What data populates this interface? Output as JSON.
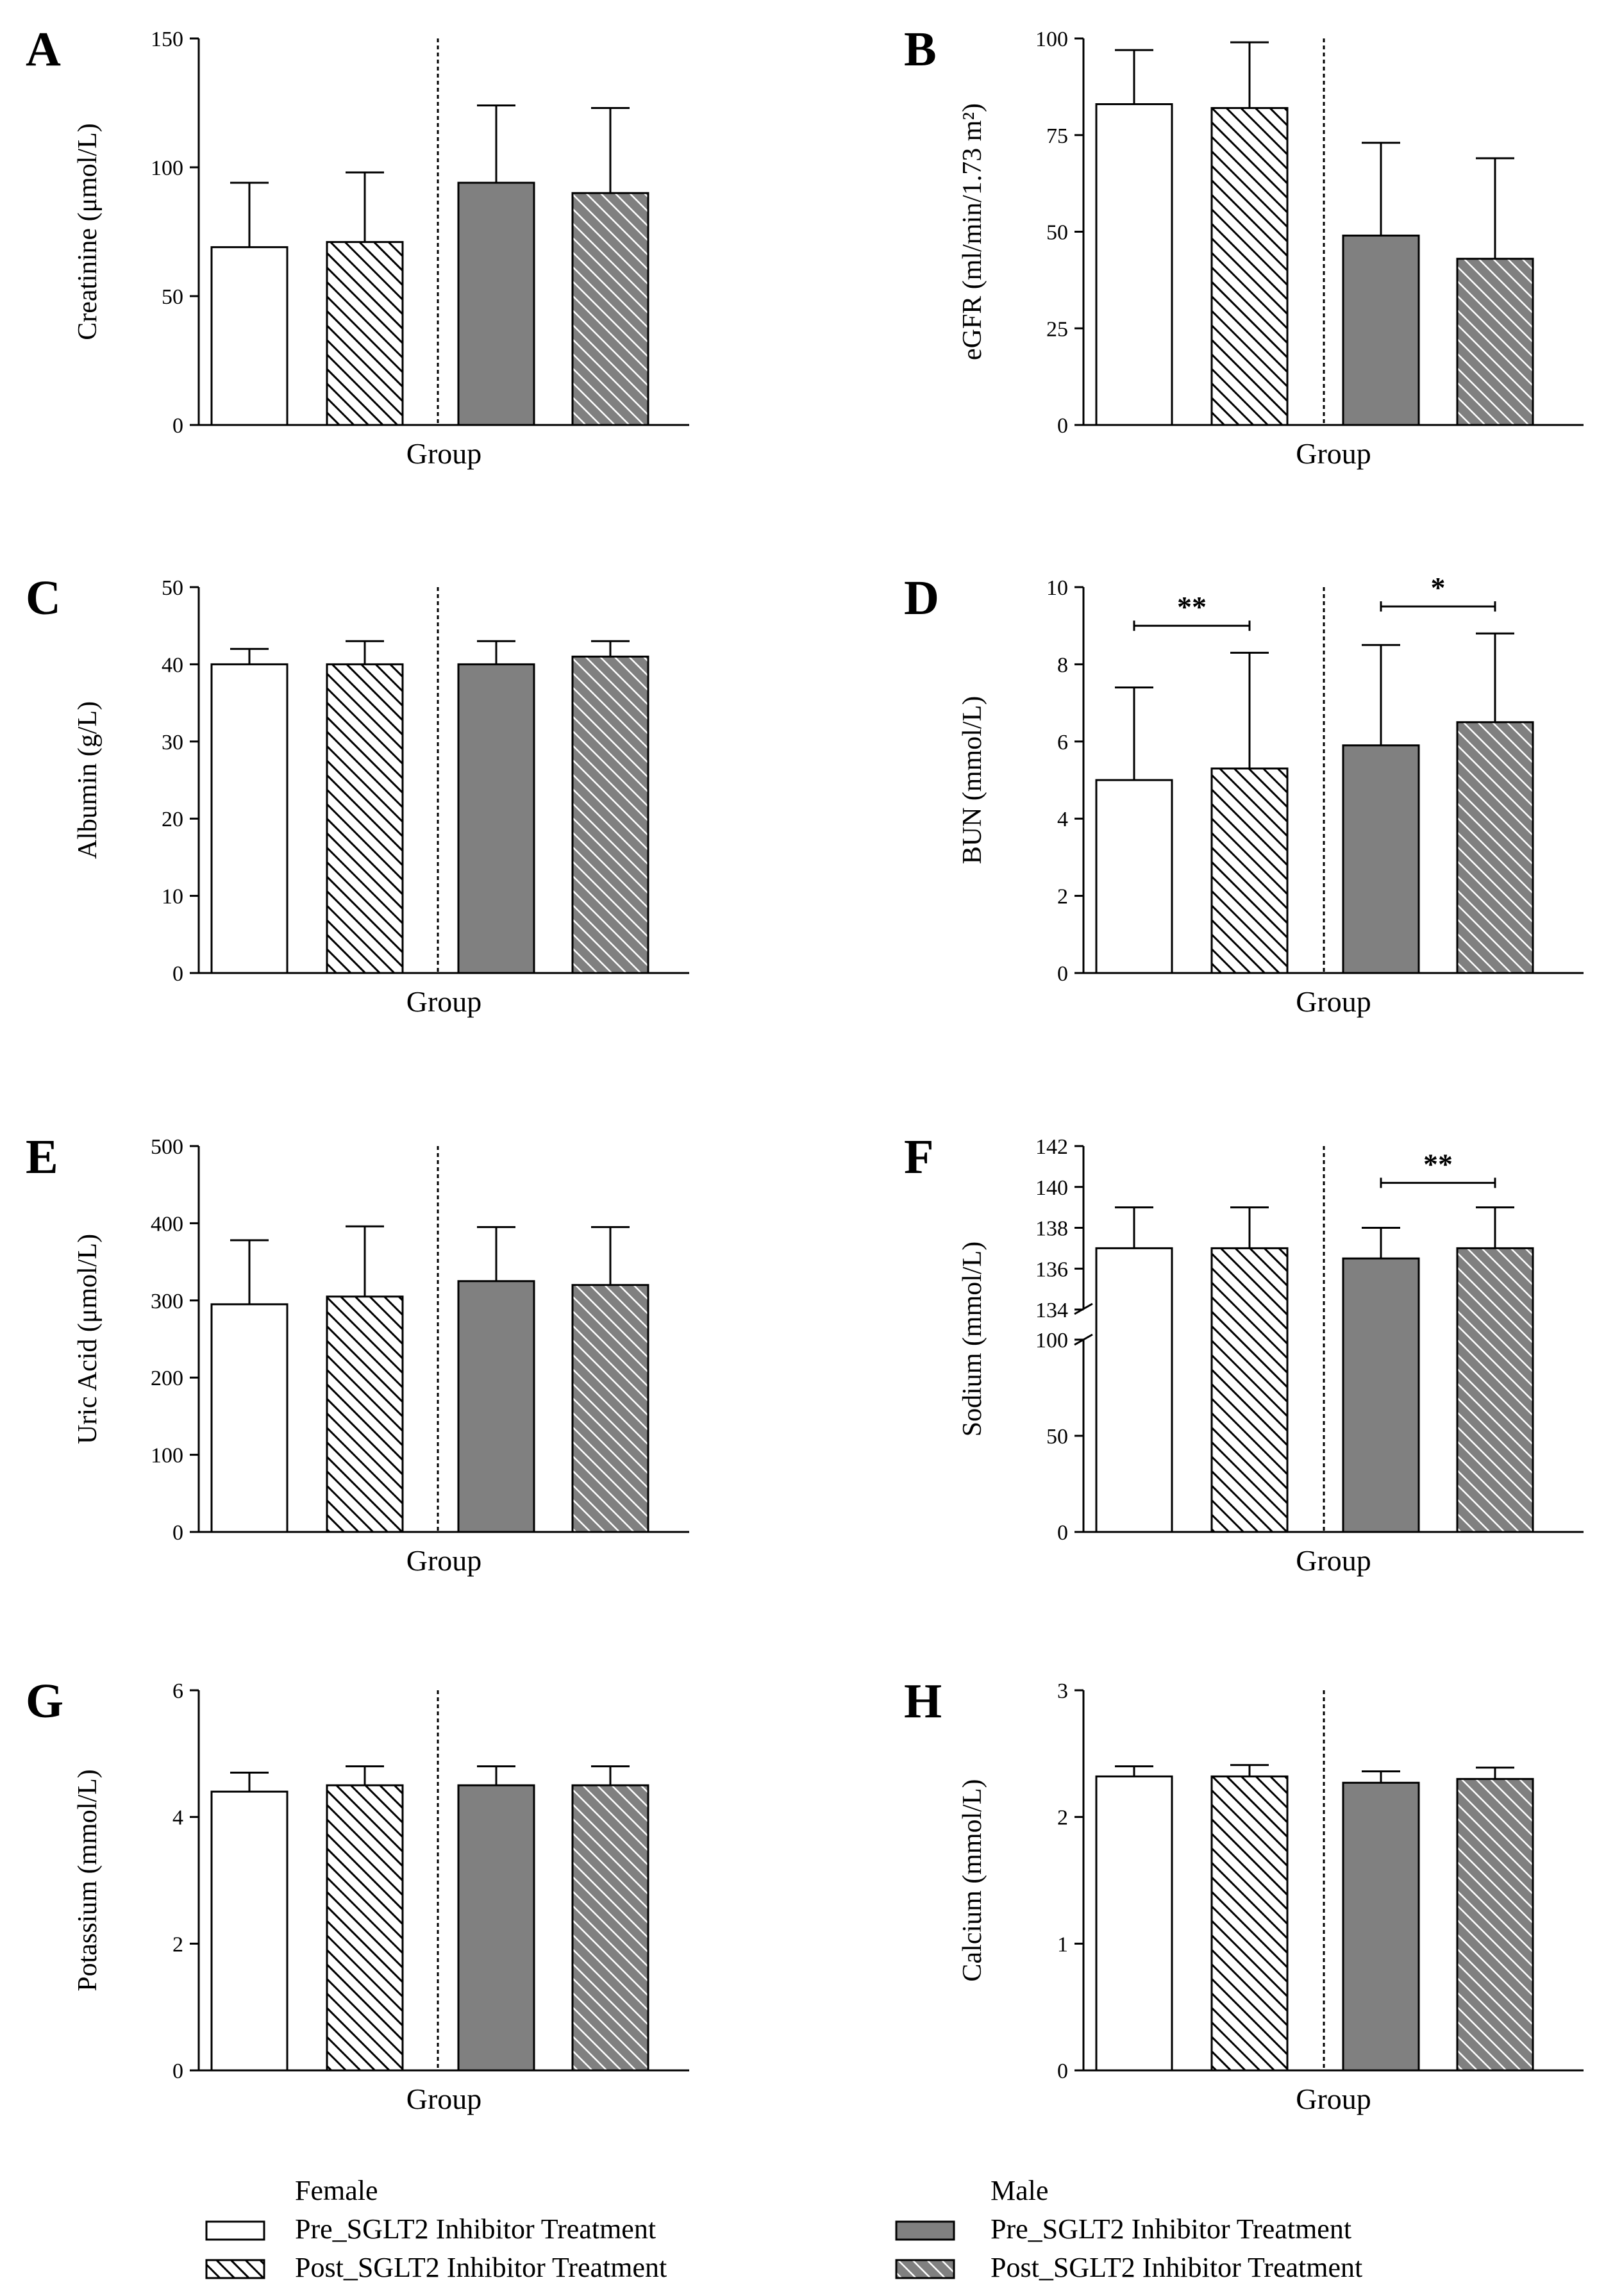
{
  "legend": {
    "female_title": "Female",
    "male_title": "Male",
    "pre_label": "Pre_SGLT2 Inhibitor Treatment",
    "post_label": "Post_SGLT2 Inhibitor Treatment"
  },
  "colors": {
    "female_fill": "#ffffff",
    "male_fill": "#808080",
    "hatch_female": "#000000",
    "hatch_male": "#ffffff",
    "axis": "#000000"
  },
  "chart_data": [
    {
      "id": "A",
      "type": "bar",
      "letter": "A",
      "ylabel": "Creatinine (μmol/L)",
      "xlabel": "Group",
      "ylim": [
        0,
        150
      ],
      "ticks": [
        0,
        50,
        100,
        150
      ],
      "tick_labels": [
        "0",
        "50",
        "100",
        "150"
      ],
      "categories": [
        "Female Pre",
        "Female Post",
        "Male Pre",
        "Male Post"
      ],
      "values": [
        69,
        71,
        94,
        90
      ],
      "errors": [
        25,
        27,
        30,
        33
      ],
      "significance": []
    },
    {
      "id": "B",
      "type": "bar",
      "letter": "B",
      "ylabel": "eGFR (ml/min/1.73 m²)",
      "xlabel": "Group",
      "ylim": [
        0,
        100
      ],
      "ticks": [
        0,
        25,
        50,
        75,
        100
      ],
      "tick_labels": [
        "0",
        "25",
        "50",
        "75",
        "100"
      ],
      "categories": [
        "Female Pre",
        "Female Post",
        "Male Pre",
        "Male Post"
      ],
      "values": [
        83,
        82,
        49,
        43
      ],
      "errors": [
        14,
        17,
        24,
        26
      ],
      "significance": []
    },
    {
      "id": "C",
      "type": "bar",
      "letter": "C",
      "ylabel": "Albumin (g/L)",
      "xlabel": "Group",
      "ylim": [
        0,
        50
      ],
      "ticks": [
        0,
        10,
        20,
        30,
        40,
        50
      ],
      "tick_labels": [
        "0",
        "10",
        "20",
        "30",
        "40",
        "50"
      ],
      "categories": [
        "Female Pre",
        "Female Post",
        "Male Pre",
        "Male Post"
      ],
      "values": [
        40,
        40,
        40,
        41
      ],
      "errors": [
        2,
        3,
        3,
        2
      ],
      "significance": []
    },
    {
      "id": "D",
      "type": "bar",
      "letter": "D",
      "ylabel": "BUN (mmol/L)",
      "xlabel": "Group",
      "ylim": [
        0,
        10
      ],
      "ticks": [
        0,
        2,
        4,
        6,
        8,
        10
      ],
      "tick_labels": [
        "0",
        "2",
        "4",
        "6",
        "8",
        "10"
      ],
      "categories": [
        "Female Pre",
        "Female Post",
        "Male Pre",
        "Male Post"
      ],
      "values": [
        5.0,
        5.3,
        5.9,
        6.5
      ],
      "errors": [
        2.4,
        3.0,
        2.6,
        2.3
      ],
      "significance": [
        {
          "from": 0,
          "to": 1,
          "y": 9.0,
          "label": "**"
        },
        {
          "from": 2,
          "to": 3,
          "y": 9.5,
          "label": "*"
        }
      ]
    },
    {
      "id": "E",
      "type": "bar",
      "letter": "E",
      "ylabel": "Uric Acid (μmol/L)",
      "xlabel": "Group",
      "ylim": [
        0,
        500
      ],
      "ticks": [
        0,
        100,
        200,
        300,
        400,
        500
      ],
      "tick_labels": [
        "0",
        "100",
        "200",
        "300",
        "400",
        "500"
      ],
      "categories": [
        "Female Pre",
        "Female Post",
        "Male Pre",
        "Male Post"
      ],
      "values": [
        295,
        305,
        325,
        320
      ],
      "errors": [
        83,
        91,
        70,
        75
      ],
      "significance": []
    },
    {
      "id": "F",
      "type": "bar",
      "letter": "F",
      "ylabel": "Sodium (mmol/L)",
      "xlabel": "Group",
      "axis_break": {
        "lower": [
          0,
          100
        ],
        "upper": [
          134,
          142
        ]
      },
      "ticks_lower": [
        0,
        50,
        100
      ],
      "tick_labels_lower": [
        "0",
        "50",
        "100"
      ],
      "ticks_upper": [
        134,
        136,
        138,
        140,
        142
      ],
      "tick_labels_upper": [
        "134",
        "136",
        "138",
        "140",
        "142"
      ],
      "categories": [
        "Female Pre",
        "Female Post",
        "Male Pre",
        "Male Post"
      ],
      "values": [
        137,
        137,
        136.5,
        137
      ],
      "errors": [
        2,
        2,
        1.5,
        2
      ],
      "significance": [
        {
          "from": 2,
          "to": 3,
          "y": 140.2,
          "label": "**"
        }
      ]
    },
    {
      "id": "G",
      "type": "bar",
      "letter": "G",
      "ylabel": "Potassium (mmol/L)",
      "xlabel": "Group",
      "ylim": [
        0,
        6
      ],
      "ticks": [
        0,
        2,
        4,
        6
      ],
      "tick_labels": [
        "0",
        "2",
        "4",
        "6"
      ],
      "categories": [
        "Female Pre",
        "Female Post",
        "Male Pre",
        "Male Post"
      ],
      "values": [
        4.4,
        4.5,
        4.5,
        4.5
      ],
      "errors": [
        0.3,
        0.3,
        0.3,
        0.3
      ],
      "significance": []
    },
    {
      "id": "H",
      "type": "bar",
      "letter": "H",
      "ylabel": "Calcium (mmol/L)",
      "xlabel": "Group",
      "ylim": [
        0,
        3
      ],
      "ticks": [
        0,
        1,
        2,
        3
      ],
      "tick_labels": [
        "0",
        "1",
        "2",
        "3"
      ],
      "categories": [
        "Female Pre",
        "Female Post",
        "Male Pre",
        "Male Post"
      ],
      "values": [
        2.32,
        2.32,
        2.27,
        2.3
      ],
      "errors": [
        0.08,
        0.09,
        0.09,
        0.09
      ],
      "significance": []
    }
  ]
}
